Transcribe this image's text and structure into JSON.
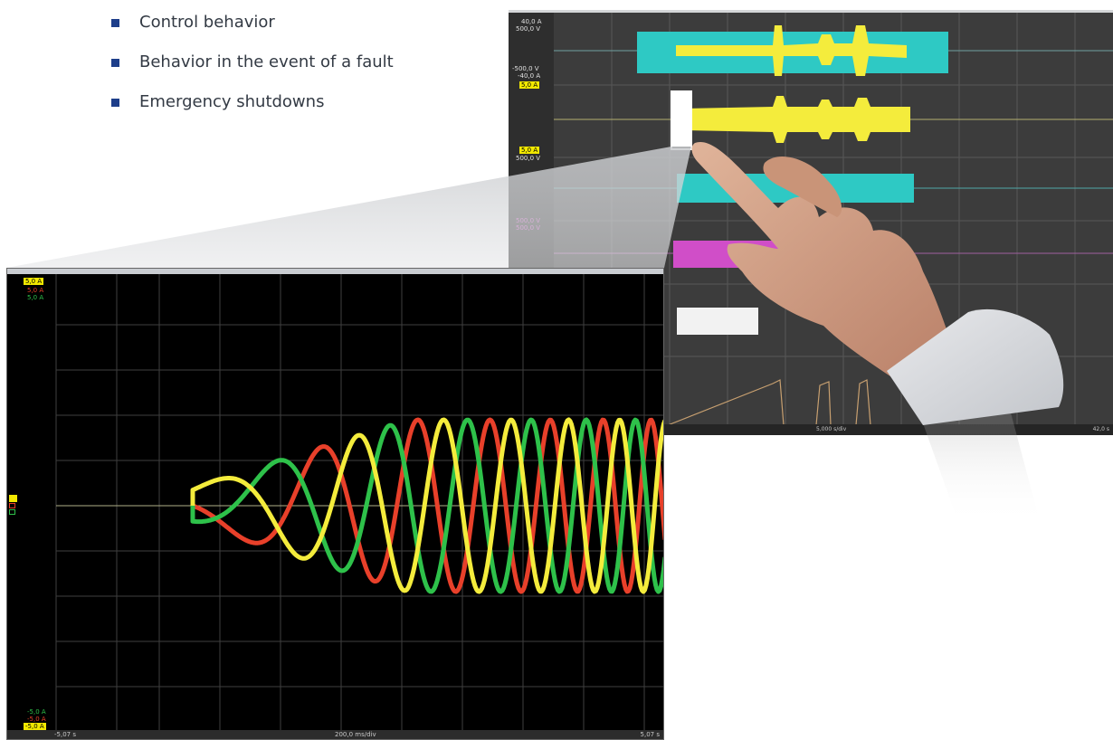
{
  "bullets": [
    {
      "text": "Control behavior"
    },
    {
      "text": "Behavior in the event of a fault"
    },
    {
      "text": "Emergency shutdowns"
    }
  ],
  "colors": {
    "bullet": "#1d3e8a",
    "phase_red": "#e8402a",
    "phase_green": "#2ec14a",
    "phase_yellow": "#f4ec3c",
    "cyan": "#2ec9c4",
    "magenta": "#d04ec8"
  },
  "large_scope": {
    "top_labels": [
      "5,0 A",
      "5,0 A",
      "5,0 A"
    ],
    "bottom_labels": [
      "-5,0 A",
      "-5,0 A",
      "-5,0 A"
    ],
    "time_start": "-5,07 s",
    "time_div": "200,0 ms/div",
    "time_end": "5,07 s"
  },
  "small_scope": {
    "labels": [
      "40,0 A",
      "500,0 V",
      "-500,0 V",
      "-40,0 A",
      "5,0 A",
      "5,0 A",
      "500,0 V",
      "500,0 V",
      "500,0 V"
    ],
    "time_div": "5,000 s/div",
    "time_end": "42,0 s"
  },
  "icons": {
    "bullet": "square-bullet-icon",
    "hand": "pointing-hand-icon"
  }
}
